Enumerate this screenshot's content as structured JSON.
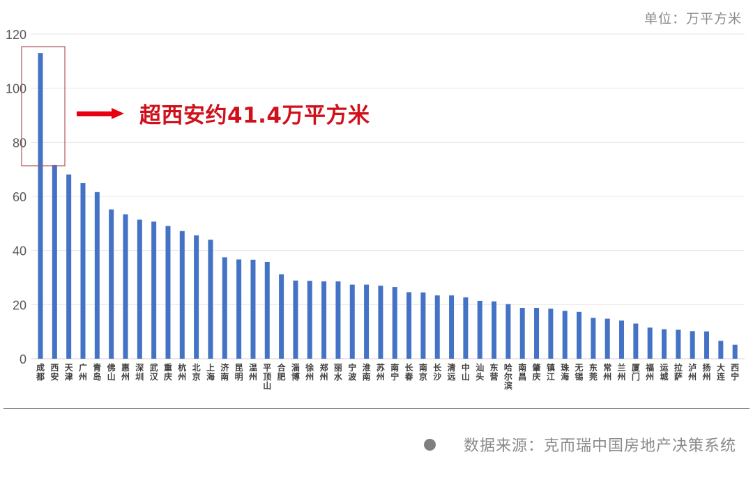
{
  "unit_label": "单位：万平方米",
  "annotation": {
    "text": "超西安约41.4万平方米",
    "color": "#e60012"
  },
  "source": {
    "text": "数据来源：克而瑞中国房地产决策系统"
  },
  "colors": {
    "bar": "#4472c4",
    "highlight_box": "#b0555f",
    "gridline": "#e6e6e6"
  },
  "chart_data": {
    "type": "bar",
    "title": "",
    "xlabel": "",
    "ylabel": "",
    "unit": "万平方米",
    "ylim": [
      0,
      120
    ],
    "yticks": [
      0,
      20,
      40,
      60,
      80,
      100,
      120
    ],
    "grid": true,
    "legend": null,
    "highlight": {
      "category": "成都",
      "note": "超西安约41.4万平方米"
    },
    "categories": [
      "成都",
      "西安",
      "天津",
      "广州",
      "青岛",
      "佛山",
      "惠州",
      "深圳",
      "武汉",
      "重庆",
      "杭州",
      "北京",
      "上海",
      "济南",
      "昆明",
      "温州",
      "平顶山",
      "合肥",
      "淄博",
      "徐州",
      "郑州",
      "丽水",
      "宁波",
      "淮南",
      "苏州",
      "南宁",
      "长春",
      "南京",
      "长沙",
      "清远",
      "中山",
      "汕头",
      "东营",
      "哈尔滨",
      "南昌",
      "肇庆",
      "镇江",
      "珠海",
      "无锡",
      "东莞",
      "常州",
      "兰州",
      "厦门",
      "福州",
      "运城",
      "拉萨",
      "泸州",
      "扬州",
      "大连",
      "西宁"
    ],
    "values": [
      113.0,
      71.6,
      68.1,
      64.9,
      61.6,
      55.2,
      53.4,
      51.4,
      50.7,
      49.1,
      47.2,
      45.6,
      44.0,
      37.5,
      36.7,
      36.6,
      35.8,
      31.2,
      28.9,
      28.8,
      28.6,
      28.6,
      27.4,
      27.4,
      27.0,
      26.5,
      24.6,
      24.5,
      23.4,
      23.4,
      22.7,
      21.4,
      21.2,
      20.2,
      18.8,
      18.8,
      18.5,
      17.7,
      17.3,
      15.1,
      14.8,
      14.1,
      13.0,
      11.5,
      10.9,
      10.7,
      10.2,
      10.1,
      6.6,
      5.2
    ]
  }
}
